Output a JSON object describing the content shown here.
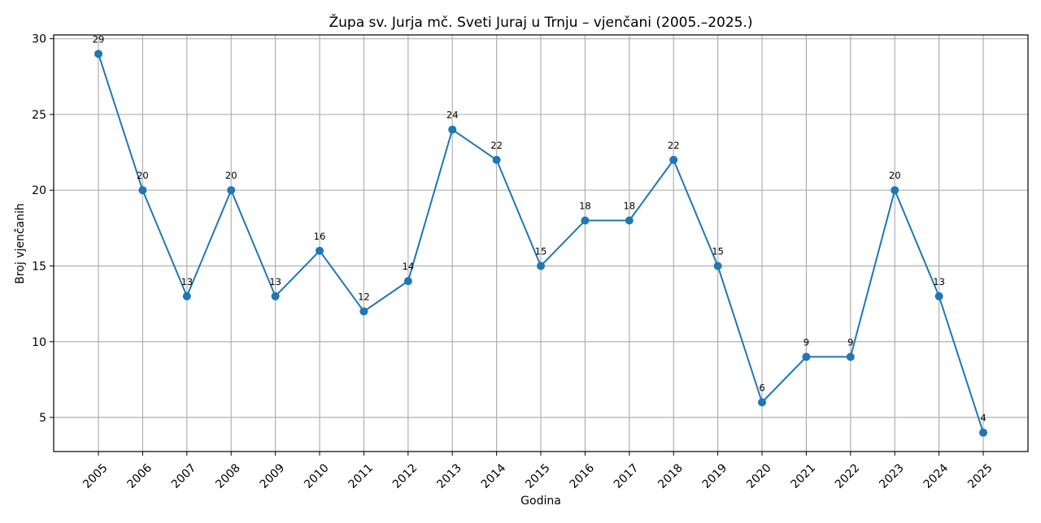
{
  "chart_data": {
    "type": "line",
    "title": "Župa sv. Jurja mč. Sveti Juraj u Trnju – vjenčani (2005.–2025.)",
    "xlabel": "Godina",
    "ylabel": "Broj vjenčanih",
    "categories": [
      "2005",
      "2006",
      "2007",
      "2008",
      "2009",
      "2010",
      "2011",
      "2012",
      "2013",
      "2014",
      "2015",
      "2016",
      "2017",
      "2018",
      "2019",
      "2020",
      "2021",
      "2022",
      "2023",
      "2024",
      "2025"
    ],
    "series": [
      {
        "name": "Vjenčani",
        "values": [
          29,
          20,
          13,
          20,
          13,
          16,
          12,
          14,
          24,
          22,
          15,
          18,
          18,
          22,
          15,
          6,
          9,
          9,
          20,
          13,
          4
        ],
        "color": "#1f77b4",
        "marker": "circle",
        "data_labels": true
      }
    ],
    "yticks": [
      5,
      10,
      15,
      20,
      25,
      30
    ],
    "ylim": [
      2.75,
      30.25
    ],
    "grid": true,
    "legend": "none",
    "xtick_rotation": 45
  },
  "colors": {
    "line": "#1f77b4",
    "grid": "#b0b0b0",
    "axes": "#000000",
    "background": "#ffffff"
  }
}
